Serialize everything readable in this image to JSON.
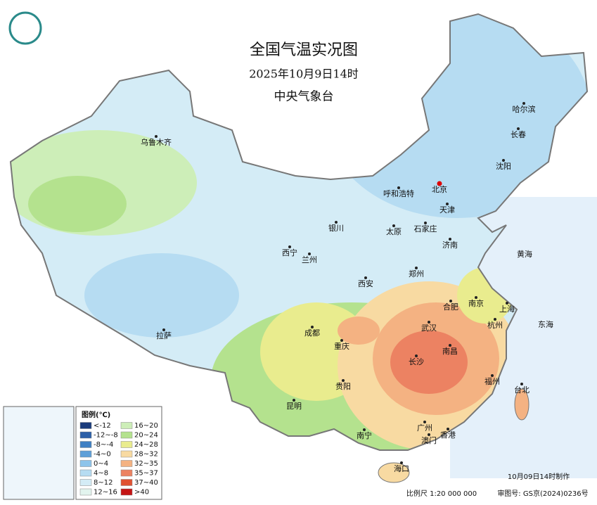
{
  "header": {
    "title": "全国气温实况图",
    "time": "2025年10月9日14时",
    "agency": "中央气象台"
  },
  "cities": [
    "乌鲁木齐",
    "哈尔滨",
    "长春",
    "沈阳",
    "呼和浩特",
    "北京",
    "天津",
    "石家庄",
    "太原",
    "银川",
    "济南",
    "西宁",
    "兰州",
    "郑州",
    "西安",
    "合肥",
    "南京",
    "上海",
    "杭州",
    "武汉",
    "成都",
    "拉萨",
    "重庆",
    "南昌",
    "长沙",
    "贵阳",
    "福州",
    "台北",
    "昆明",
    "南宁",
    "广州",
    "香港",
    "澳门",
    "海口"
  ],
  "seas": [
    "黄海",
    "东海"
  ],
  "legend": {
    "title": "图例(℃)",
    "items": [
      {
        "label": "<-12",
        "color": "#1b3c7c"
      },
      {
        "label": "-12~-8",
        "color": "#2b5fa8"
      },
      {
        "label": "-8~-4",
        "color": "#3f80c4"
      },
      {
        "label": "-4~0",
        "color": "#5e9fd8"
      },
      {
        "label": "0~4",
        "color": "#8ec4ea"
      },
      {
        "label": "4~8",
        "color": "#b6dcf2"
      },
      {
        "label": "8~12",
        "color": "#d4ecf6"
      },
      {
        "label": "12~16",
        "color": "#e2f4ee"
      },
      {
        "label": "16~20",
        "color": "#cdeeb8"
      },
      {
        "label": "20~24",
        "color": "#b4e28e"
      },
      {
        "label": "24~28",
        "color": "#e9ec8e"
      },
      {
        "label": "28~32",
        "color": "#f8daa2"
      },
      {
        "label": "32~35",
        "color": "#f4b282"
      },
      {
        "label": "35~37",
        "color": "#ec8262"
      },
      {
        "label": "37~40",
        "color": "#e05232"
      },
      {
        "label": ">40",
        "color": "#c41414"
      }
    ]
  },
  "footer": {
    "made": "10月09日14时制作",
    "scale": "比例尺 1:20 000 000",
    "approval": "审图号: GS京(2024)0236号"
  }
}
